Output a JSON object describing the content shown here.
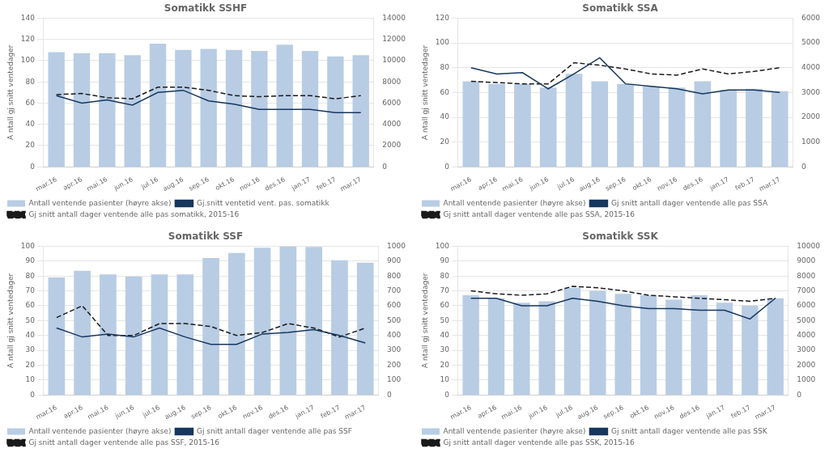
{
  "chart_data": [
    {
      "type": "bar",
      "title": "Somatikk SSHF",
      "categories": [
        "mar.16",
        "apr.16",
        "mai.16",
        "jun.16",
        "jul.16",
        "aug.16",
        "sep.16",
        "okt.16",
        "nov.16",
        "des.16",
        "jan.17",
        "feb.17",
        "mar.17"
      ],
      "series": [
        {
          "name": "Antall ventende pasienter (høyre akse)",
          "type": "bar",
          "axis": "y2",
          "color": "#b8cce4",
          "values": [
            10800,
            10700,
            10700,
            10500,
            11600,
            11000,
            11100,
            11000,
            10900,
            11500,
            10900,
            10400,
            10500
          ]
        },
        {
          "name": "Gj.snitt ventetid vent. pas. somatikk",
          "type": "line",
          "color": "#17375e",
          "line_style": "solid",
          "values": [
            67,
            60,
            63,
            58,
            70,
            72,
            62,
            59,
            54,
            54,
            54,
            51,
            51
          ]
        },
        {
          "name": "Gj snitt antall dager ventende alle pas somatikk, 2015-16",
          "type": "line",
          "color": "#1a1a1a",
          "line_style": "dashed",
          "values": [
            68,
            69,
            65,
            64,
            75,
            75,
            72,
            67,
            66,
            67,
            67,
            64,
            67
          ]
        }
      ],
      "ylabel": "A ntall gj snitt ventedager",
      "ylim": [
        0,
        140
      ],
      "yticks": [
        0,
        20,
        40,
        60,
        80,
        100,
        120,
        140
      ],
      "y2lim": [
        0,
        14000
      ],
      "y2ticks": [
        0,
        2000,
        4000,
        6000,
        8000,
        10000,
        12000,
        14000
      ],
      "grid": true,
      "legend": "bottom"
    },
    {
      "type": "bar",
      "title": "Somatikk SSA",
      "categories": [
        "mar.16",
        "apr.16",
        "mai.16",
        "jun.16",
        "jul.16",
        "aug.16",
        "sep.16",
        "okt.16",
        "nov.16",
        "des.16",
        "jan.17",
        "feb.17",
        "mar.17"
      ],
      "series": [
        {
          "name": "Antall ventende pasienter (høyre akse)",
          "type": "bar",
          "axis": "y2",
          "color": "#b8cce4",
          "values": [
            3450,
            3350,
            3350,
            3200,
            3750,
            3450,
            3350,
            3250,
            3200,
            3450,
            3100,
            3150,
            3050
          ]
        },
        {
          "name": "Gj snitt antall dager ventende alle pas SSA",
          "type": "line",
          "color": "#17375e",
          "line_style": "solid",
          "values": [
            80,
            75,
            76,
            63,
            75,
            88,
            67,
            65,
            63,
            59,
            62,
            62,
            60
          ]
        },
        {
          "name": "Gj snitt antall dager ventende alle pas SSA, 2015-16",
          "type": "line",
          "color": "#1a1a1a",
          "line_style": "dashed",
          "values": [
            69,
            68,
            67,
            67,
            84,
            82,
            79,
            75,
            74,
            79,
            75,
            77,
            80
          ]
        }
      ],
      "ylabel": "A ntall gj snitt ventedager",
      "ylim": [
        0,
        120
      ],
      "yticks": [
        0,
        20,
        40,
        60,
        80,
        100,
        120
      ],
      "y2lim": [
        0,
        6000
      ],
      "y2ticks": [
        0,
        1000,
        2000,
        3000,
        4000,
        5000,
        6000
      ],
      "grid": true,
      "legend": "bottom"
    },
    {
      "type": "bar",
      "title": "Somatikk SSF",
      "categories": [
        "mar.16",
        "apr.16",
        "mai.16",
        "jun.16",
        "jul.16",
        "aug.16",
        "sep.16",
        "okt.16",
        "nov.16",
        "des.16",
        "jan.17",
        "feb.17",
        "mar.17"
      ],
      "series": [
        {
          "name": "Antall ventende pasienter (høyre akse)",
          "type": "bar",
          "axis": "y2",
          "color": "#b8cce4",
          "values": [
            790,
            835,
            810,
            795,
            810,
            810,
            920,
            955,
            990,
            1000,
            995,
            905,
            890
          ]
        },
        {
          "name": "Gj snitt antall dager ventende alle pas SSF",
          "type": "line",
          "color": "#17375e",
          "line_style": "solid",
          "values": [
            45,
            39,
            41,
            39,
            45,
            39,
            34,
            34,
            41,
            42,
            44,
            40,
            35
          ]
        },
        {
          "name": "Gj snitt antall dager ventende alle pas SSF, 2015-16",
          "type": "line",
          "color": "#1a1a1a",
          "line_style": "dashed",
          "values": [
            52,
            60,
            40,
            40,
            48,
            48,
            46,
            40,
            42,
            48,
            45,
            39,
            45
          ]
        }
      ],
      "ylabel": "A ntall gj snitt ventedager",
      "ylim": [
        0,
        100
      ],
      "yticks": [
        0,
        10,
        20,
        30,
        40,
        50,
        60,
        70,
        80,
        90,
        100
      ],
      "y2lim": [
        0,
        1000
      ],
      "y2ticks": [
        0,
        100,
        200,
        300,
        400,
        500,
        600,
        700,
        800,
        900,
        1000
      ],
      "grid": true,
      "legend": "bottom"
    },
    {
      "type": "bar",
      "title": "Somatikk SSK",
      "categories": [
        "mar.16",
        "apr.16",
        "mai.16",
        "jun.16",
        "jul.16",
        "aug.16",
        "sep.16",
        "okt.16",
        "nov.16",
        "des.16",
        "jan.17",
        "feb.17",
        "mar.17"
      ],
      "series": [
        {
          "name": "Antall ventende pasienter (høyre akse)",
          "type": "bar",
          "axis": "y2",
          "color": "#b8cce4",
          "values": [
            6700,
            6500,
            6200,
            6300,
            7200,
            7000,
            6800,
            6700,
            6400,
            6700,
            6200,
            6000,
            6500
          ]
        },
        {
          "name": "Gj snitt antall dager ventende alle pas SSK",
          "type": "line",
          "color": "#17375e",
          "line_style": "solid",
          "values": [
            65,
            65,
            60,
            60,
            65,
            63,
            60,
            58,
            58,
            57,
            57,
            51,
            65
          ]
        },
        {
          "name": "Gj snitt antall dager ventende alle pas SSK, 2015-16",
          "type": "line",
          "color": "#1a1a1a",
          "line_style": "dashed",
          "values": [
            70,
            68,
            67,
            68,
            73,
            72,
            70,
            67,
            66,
            65,
            64,
            63,
            65
          ]
        }
      ],
      "ylabel": "A ntall gj snitt ventedager",
      "ylim": [
        0,
        100
      ],
      "yticks": [
        0,
        10,
        20,
        30,
        40,
        50,
        60,
        70,
        80,
        90,
        100
      ],
      "y2lim": [
        0,
        10000
      ],
      "y2ticks": [
        0,
        1000,
        2000,
        3000,
        4000,
        5000,
        6000,
        7000,
        8000,
        9000,
        10000
      ],
      "grid": true,
      "legend": "bottom"
    }
  ]
}
